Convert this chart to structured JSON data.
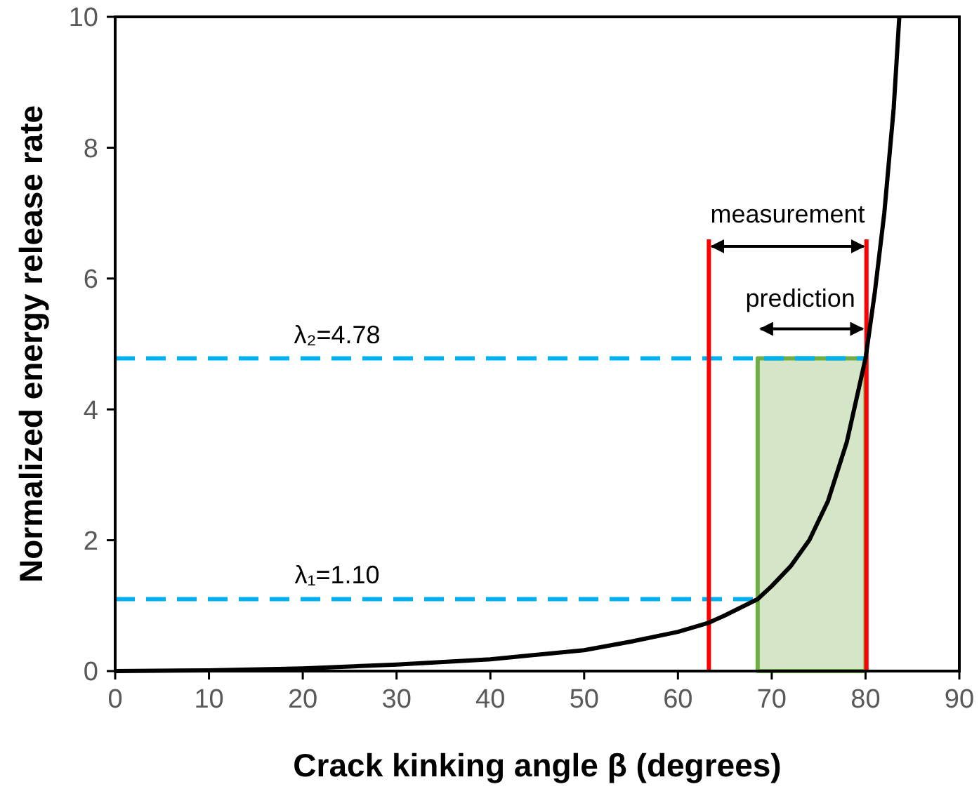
{
  "chart_data": {
    "type": "line",
    "xlabel": "Crack kinking angle β (degrees)",
    "ylabel": "Normalized energy release rate",
    "xlim": [
      0,
      90
    ],
    "xticks": [
      0,
      10,
      20,
      30,
      40,
      50,
      60,
      70,
      80,
      90
    ],
    "ylim": [
      0,
      10
    ],
    "yticks": [
      0,
      2,
      4,
      6,
      8,
      10
    ],
    "grid": false,
    "marker": "none",
    "series": [
      {
        "type": "area",
        "color": "#70ad47",
        "x": [
          68.5,
          80
        ],
        "values": [
          4.78,
          4.78
        ]
      },
      {
        "type": "line",
        "color": "#00b0f0",
        "line_style": "dashed",
        "x": [
          0,
          80
        ],
        "values": [
          4.78,
          4.78
        ]
      },
      {
        "type": "line",
        "color": "#00b0f0",
        "line_style": "dashed",
        "x": [
          0,
          68.5
        ],
        "values": [
          1.1,
          1.1
        ]
      },
      {
        "type": "line",
        "color": "#ff0000",
        "line_style": "solid",
        "x": [
          63.3,
          63.3
        ],
        "values": [
          0,
          6.6
        ]
      },
      {
        "type": "line",
        "color": "#ff0000",
        "line_style": "solid",
        "x": [
          80.1,
          80.1
        ],
        "values": [
          0,
          6.6
        ]
      },
      {
        "color": "#000000",
        "line_style": "solid",
        "x": [
          0,
          10,
          20,
          30,
          40,
          50,
          55,
          60,
          63.3,
          65,
          68.5,
          70,
          72,
          74,
          76,
          78,
          80,
          81,
          82,
          83,
          83.6
        ],
        "values": [
          0,
          0.01,
          0.04,
          0.1,
          0.18,
          0.32,
          0.45,
          0.6,
          0.74,
          0.85,
          1.1,
          1.3,
          1.6,
          2.0,
          2.6,
          3.5,
          4.78,
          5.8,
          7.0,
          8.6,
          10
        ]
      }
    ],
    "annotations": [
      "measurement",
      "prediction",
      "λ₂=4.78",
      "λ₁=1.10"
    ]
  }
}
